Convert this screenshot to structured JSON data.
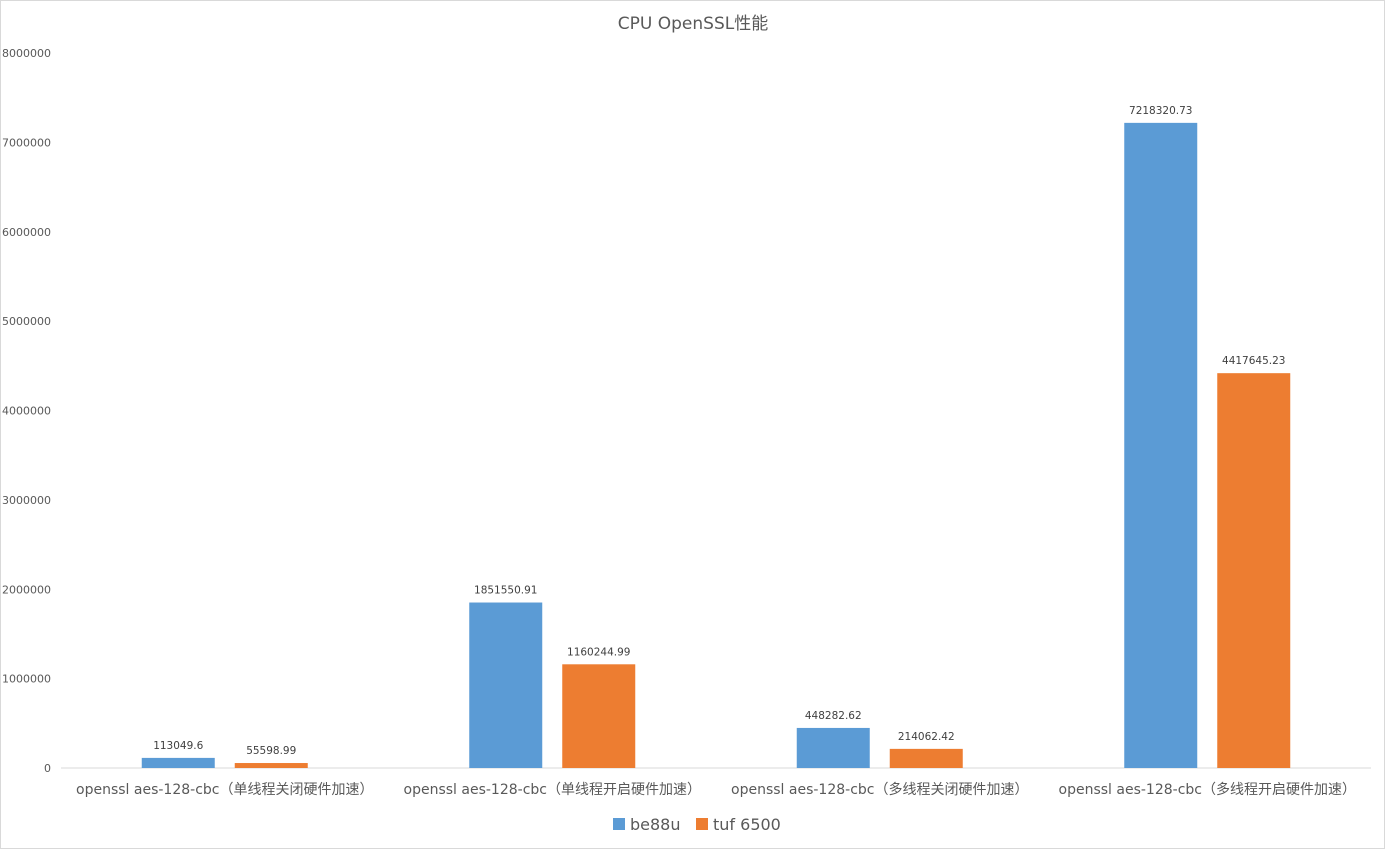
{
  "chart_data": {
    "type": "bar",
    "title": "CPU  OpenSSL性能",
    "xlabel": "",
    "ylabel": "",
    "categories": [
      "openssl aes-128-cbc（单线程关闭硬件加速）",
      "openssl aes-128-cbc（单线程开启硬件加速）",
      "openssl aes-128-cbc（多线程关闭硬件加速）",
      "openssl aes-128-cbc（多线程开启硬件加速）"
    ],
    "series": [
      {
        "name": "be88u",
        "color": "#5B9BD5",
        "values": [
          113049.6,
          1851550.91,
          448282.62,
          7218320.73
        ],
        "labels": [
          "113049.6",
          "1851550.91",
          "448282.62",
          "7218320.73"
        ]
      },
      {
        "name": "tuf 6500",
        "color": "#ED7D31",
        "values": [
          55598.99,
          1160244.99,
          214062.42,
          4417645.23
        ],
        "labels": [
          "55598.99",
          "1160244.99",
          "214062.42",
          "4417645.23"
        ]
      }
    ],
    "ylim": [
      0,
      8000000
    ],
    "yticks": [
      0,
      1000000,
      2000000,
      3000000,
      4000000,
      5000000,
      6000000,
      7000000,
      8000000
    ],
    "ytick_labels": [
      "0",
      "1000000",
      "2000000",
      "3000000",
      "4000000",
      "5000000",
      "6000000",
      "7000000",
      "8000000"
    ],
    "grid": false,
    "legend_position": "bottom",
    "axis_color": "#d9d9d9"
  }
}
